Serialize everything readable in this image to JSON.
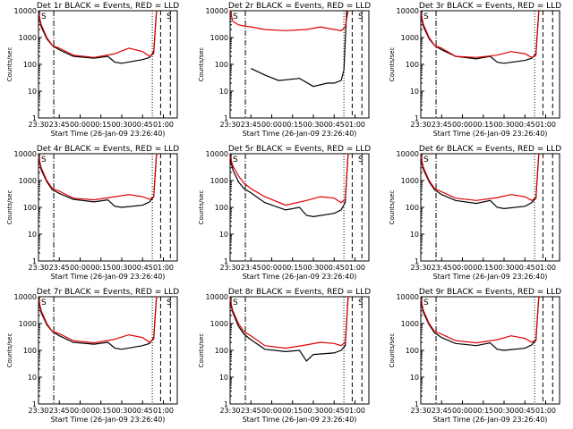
{
  "colors": {
    "background": "#ffffff",
    "events": "#000000",
    "lld": "#e00000",
    "axes": "#000000"
  },
  "x_tick_labels": [
    "23:30",
    "23:45",
    "00:00",
    "00:15",
    "00:30",
    "00:45",
    "01:00"
  ],
  "y_tick_labels": [
    "1",
    "10",
    "100",
    "1000",
    "10000"
  ],
  "y_label": "Counts/sec",
  "x_label": "Start Time (26-Jan-09 23:26:40)",
  "chart_data": [
    {
      "type": "line",
      "title": "Det 1r BLACK = Events, RED = LLD",
      "xlabel": "Start Time (26-Jan-09 23:26:40)",
      "ylabel": "Counts/sec",
      "xlim": [
        "23:30",
        "01:10"
      ],
      "ylim": [
        1,
        10000
      ],
      "yscale": "log",
      "corner_labels": [
        "S",
        "S"
      ],
      "series": [
        {
          "name": "Events",
          "color": "#000000",
          "x": [
            "23:30",
            "23:32",
            "23:36",
            "23:40",
            "23:45",
            "23:55",
            "00:10",
            "00:20",
            "00:25",
            "00:30",
            "00:45",
            "00:50",
            "00:53",
            "00:55"
          ],
          "values": [
            7000,
            2500,
            900,
            500,
            350,
            200,
            170,
            200,
            120,
            110,
            150,
            180,
            300,
            12000
          ]
        },
        {
          "name": "LLD",
          "color": "#e00000",
          "x": [
            "23:30",
            "23:32",
            "23:36",
            "23:40",
            "23:45",
            "23:55",
            "00:10",
            "00:25",
            "00:35",
            "00:45",
            "00:50",
            "00:53",
            "00:55"
          ],
          "values": [
            8000,
            3000,
            1000,
            500,
            400,
            220,
            180,
            250,
            400,
            300,
            200,
            250,
            12000
          ]
        }
      ]
    },
    {
      "type": "line",
      "title": "Det 2r BLACK = Events, RED = LLD",
      "xlabel": "Start Time (26-Jan-09 23:26:40)",
      "ylabel": "Counts/sec",
      "xlim": [
        "23:30",
        "01:10"
      ],
      "ylim": [
        1,
        10000
      ],
      "yscale": "log",
      "corner_labels": [
        "S",
        "S"
      ],
      "series": [
        {
          "name": "Events",
          "color": "#000000",
          "x": [
            "23:45",
            "23:55",
            "00:05",
            "00:20",
            "00:30",
            "00:40",
            "00:45",
            "00:50",
            "00:52",
            "00:54"
          ],
          "values": [
            70,
            40,
            25,
            30,
            15,
            20,
            20,
            25,
            60,
            10000
          ]
        },
        {
          "name": "LLD",
          "color": "#e00000",
          "x": [
            "23:30",
            "23:32",
            "23:36",
            "23:40",
            "23:45",
            "23:55",
            "00:10",
            "00:25",
            "00:35",
            "00:45",
            "00:50",
            "00:53",
            "00:55"
          ],
          "values": [
            10000,
            4000,
            3000,
            2700,
            2500,
            2000,
            1800,
            2000,
            2500,
            2000,
            1800,
            2500,
            12000
          ]
        }
      ]
    },
    {
      "type": "line",
      "title": "Det 3r BLACK = Events, RED = LLD",
      "xlabel": "Start Time (26-Jan-09 23:26:40)",
      "ylabel": "Counts/sec",
      "xlim": [
        "23:30",
        "01:10"
      ],
      "ylim": [
        1,
        10000
      ],
      "yscale": "log",
      "corner_labels": [
        "S"
      ],
      "series": [
        {
          "name": "Events",
          "color": "#000000",
          "x": [
            "23:30",
            "23:32",
            "23:36",
            "23:40",
            "23:45",
            "23:55",
            "00:10",
            "00:20",
            "00:25",
            "00:30",
            "00:45",
            "00:50",
            "00:53",
            "00:55"
          ],
          "values": [
            7000,
            2500,
            900,
            500,
            350,
            200,
            160,
            200,
            120,
            110,
            140,
            170,
            250,
            12000
          ]
        },
        {
          "name": "LLD",
          "color": "#e00000",
          "x": [
            "23:30",
            "23:32",
            "23:36",
            "23:40",
            "23:45",
            "23:55",
            "00:10",
            "00:25",
            "00:35",
            "00:45",
            "00:50",
            "00:53",
            "00:55"
          ],
          "values": [
            8000,
            3000,
            1000,
            500,
            400,
            200,
            180,
            220,
            300,
            250,
            180,
            220,
            12000
          ]
        }
      ]
    },
    {
      "type": "line",
      "title": "Det 4r BLACK = Events, RED = LLD",
      "xlabel": "Start Time (26-Jan-09 23:26:40)",
      "ylabel": "Counts/sec",
      "xlim": [
        "23:30",
        "01:10"
      ],
      "ylim": [
        1,
        10000
      ],
      "yscale": "log",
      "corner_labels": [
        "S"
      ],
      "series": [
        {
          "name": "Events",
          "color": "#000000",
          "x": [
            "23:30",
            "23:32",
            "23:36",
            "23:40",
            "23:45",
            "23:55",
            "00:10",
            "00:20",
            "00:25",
            "00:30",
            "00:45",
            "00:50",
            "00:53",
            "00:55"
          ],
          "values": [
            7000,
            2500,
            900,
            450,
            330,
            200,
            160,
            190,
            110,
            100,
            120,
            160,
            250,
            12000
          ]
        },
        {
          "name": "LLD",
          "color": "#e00000",
          "x": [
            "23:30",
            "23:32",
            "23:36",
            "23:40",
            "23:45",
            "23:55",
            "00:10",
            "00:25",
            "00:35",
            "00:45",
            "00:50",
            "00:53",
            "00:55"
          ],
          "values": [
            8000,
            3000,
            1000,
            500,
            400,
            220,
            190,
            250,
            300,
            250,
            200,
            250,
            12000
          ]
        }
      ]
    },
    {
      "type": "line",
      "title": "Det 5r BLACK = Events, RED = LLD",
      "xlabel": "Start Time (26-Jan-09 23:26:40)",
      "ylabel": "Counts/sec",
      "xlim": [
        "23:30",
        "01:10"
      ],
      "ylim": [
        1,
        10000
      ],
      "yscale": "log",
      "corner_labels": [
        "S",
        "S"
      ],
      "series": [
        {
          "name": "Events",
          "color": "#000000",
          "x": [
            "23:30",
            "23:32",
            "23:36",
            "23:40",
            "23:45",
            "23:55",
            "00:10",
            "00:20",
            "00:25",
            "00:30",
            "00:45",
            "00:50",
            "00:53",
            "00:55"
          ],
          "values": [
            7000,
            2500,
            900,
            500,
            350,
            150,
            80,
            100,
            50,
            45,
            60,
            80,
            150,
            12000
          ]
        },
        {
          "name": "LLD",
          "color": "#e00000",
          "x": [
            "23:30",
            "23:32",
            "23:36",
            "23:40",
            "23:45",
            "23:55",
            "00:10",
            "00:25",
            "00:35",
            "00:45",
            "00:50",
            "00:53",
            "00:55"
          ],
          "values": [
            8000,
            3500,
            1500,
            800,
            500,
            250,
            120,
            180,
            250,
            220,
            150,
            200,
            12000
          ]
        }
      ]
    },
    {
      "type": "line",
      "title": "Det 6r BLACK = Events, RED = LLD",
      "xlabel": "Start Time (26-Jan-09 23:26:40)",
      "ylabel": "Counts/sec",
      "xlim": [
        "23:30",
        "01:10"
      ],
      "ylim": [
        1,
        10000
      ],
      "yscale": "log",
      "corner_labels": [
        "S"
      ],
      "series": [
        {
          "name": "Events",
          "color": "#000000",
          "x": [
            "23:30",
            "23:32",
            "23:36",
            "23:40",
            "23:45",
            "23:55",
            "00:10",
            "00:20",
            "00:25",
            "00:30",
            "00:45",
            "00:50",
            "00:53",
            "00:55"
          ],
          "values": [
            7000,
            2500,
            900,
            450,
            300,
            180,
            140,
            180,
            100,
            90,
            110,
            150,
            220,
            12000
          ]
        },
        {
          "name": "LLD",
          "color": "#e00000",
          "x": [
            "23:30",
            "23:32",
            "23:36",
            "23:40",
            "23:45",
            "23:55",
            "00:10",
            "00:25",
            "00:35",
            "00:45",
            "00:50",
            "00:53",
            "00:55"
          ],
          "values": [
            8000,
            3000,
            1000,
            500,
            380,
            220,
            180,
            230,
            300,
            250,
            180,
            230,
            12000
          ]
        }
      ]
    },
    {
      "type": "line",
      "title": "Det 7r BLACK = Events, RED = LLD",
      "xlabel": "Start Time (26-Jan-09 23:26:40)",
      "ylabel": "Counts/sec",
      "xlim": [
        "23:30",
        "01:10"
      ],
      "ylim": [
        1,
        10000
      ],
      "yscale": "log",
      "corner_labels": [
        "S",
        "S"
      ],
      "series": [
        {
          "name": "Events",
          "color": "#000000",
          "x": [
            "23:30",
            "23:32",
            "23:36",
            "23:40",
            "23:45",
            "23:55",
            "00:10",
            "00:20",
            "00:25",
            "00:30",
            "00:45",
            "00:50",
            "00:53",
            "00:55"
          ],
          "values": [
            7000,
            2500,
            900,
            500,
            350,
            200,
            170,
            200,
            120,
            110,
            150,
            180,
            300,
            12000
          ]
        },
        {
          "name": "LLD",
          "color": "#e00000",
          "x": [
            "23:30",
            "23:32",
            "23:36",
            "23:40",
            "23:45",
            "23:55",
            "00:10",
            "00:25",
            "00:35",
            "00:45",
            "00:50",
            "00:53",
            "00:55"
          ],
          "values": [
            8000,
            3000,
            1000,
            500,
            420,
            230,
            190,
            260,
            380,
            300,
            200,
            260,
            12000
          ]
        }
      ]
    },
    {
      "type": "line",
      "title": "Det 8r BLACK = Events, RED = LLD",
      "xlabel": "Start Time (26-Jan-09 23:26:40)",
      "ylabel": "Counts/sec",
      "xlim": [
        "23:30",
        "01:10"
      ],
      "ylim": [
        1,
        10000
      ],
      "yscale": "log",
      "corner_labels": [
        "S",
        "S"
      ],
      "series": [
        {
          "name": "Events",
          "color": "#000000",
          "x": [
            "23:30",
            "23:32",
            "23:36",
            "23:40",
            "23:45",
            "23:55",
            "00:10",
            "00:20",
            "00:25",
            "00:30",
            "00:45",
            "00:50",
            "00:53",
            "00:55"
          ],
          "values": [
            7000,
            2500,
            800,
            400,
            250,
            110,
            90,
            100,
            40,
            70,
            80,
            100,
            150,
            12000
          ]
        },
        {
          "name": "LLD",
          "color": "#e00000",
          "x": [
            "23:30",
            "23:32",
            "23:36",
            "23:40",
            "23:45",
            "23:55",
            "00:10",
            "00:25",
            "00:35",
            "00:45",
            "00:50",
            "00:53",
            "00:55"
          ],
          "values": [
            8000,
            3000,
            1000,
            500,
            350,
            150,
            120,
            160,
            200,
            180,
            150,
            200,
            12000
          ]
        }
      ]
    },
    {
      "type": "line",
      "title": "Det 9r BLACK = Events, RED = LLD",
      "xlabel": "Start Time (26-Jan-09 23:26:40)",
      "ylabel": "Counts/sec",
      "xlim": [
        "23:30",
        "01:10"
      ],
      "ylim": [
        1,
        10000
      ],
      "yscale": "log",
      "corner_labels": [
        "S"
      ],
      "series": [
        {
          "name": "Events",
          "color": "#000000",
          "x": [
            "23:30",
            "23:32",
            "23:36",
            "23:40",
            "23:45",
            "23:55",
            "00:10",
            "00:20",
            "00:25",
            "00:30",
            "00:45",
            "00:50",
            "00:53",
            "00:55"
          ],
          "values": [
            7000,
            2500,
            900,
            450,
            300,
            180,
            150,
            190,
            110,
            100,
            120,
            160,
            240,
            12000
          ]
        },
        {
          "name": "LLD",
          "color": "#e00000",
          "x": [
            "23:30",
            "23:32",
            "23:36",
            "23:40",
            "23:45",
            "23:55",
            "00:10",
            "00:25",
            "00:35",
            "00:45",
            "00:50",
            "00:53",
            "00:55"
          ],
          "values": [
            8000,
            3000,
            1000,
            500,
            400,
            230,
            190,
            250,
            350,
            280,
            200,
            250,
            12000
          ]
        }
      ]
    }
  ]
}
